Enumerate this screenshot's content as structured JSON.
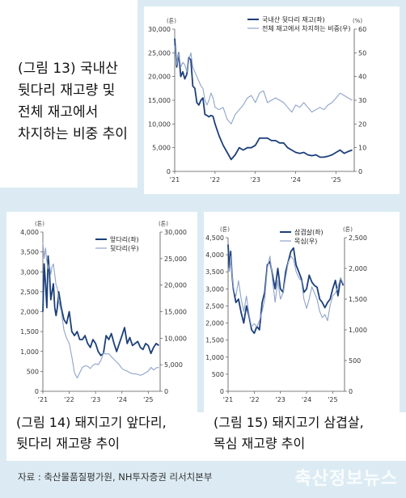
{
  "caption1": [
    "(그림 13) 국내산",
    "뒷다리 재고량 및",
    "전체 재고에서",
    "차지하는 비중 추이"
  ],
  "caption2": [
    "(그림 14) 돼지고기 앞다리,",
    "뒷다리 재고량 추이"
  ],
  "caption3": [
    "(그림 15) 돼지고기 삼겹살,",
    "목심 재고량 추이"
  ],
  "source": "자료 : 축산물품질평가원, NH투자증권 리서치본부",
  "watermark": "축산정보뉴스",
  "colors": {
    "primary": "#1c3f7a",
    "secondary": "#8fa3c9"
  },
  "chart_data": [
    {
      "type": "line",
      "left_unit": "(톤)",
      "right_unit": "(%)",
      "left_ticks": [
        "30,000",
        "25,000",
        "20,000",
        "15,000",
        "10,000",
        "5,000",
        "0"
      ],
      "right_ticks": [
        "60",
        "50",
        "40",
        "30",
        "20",
        "10",
        "0"
      ],
      "x_ticks": [
        "'21",
        "'22",
        "'23",
        "'24",
        "'25"
      ],
      "ylim": [
        0,
        30000
      ],
      "y2lim": [
        0,
        60
      ],
      "xlim": [
        2021.0,
        2025.45
      ],
      "series": [
        {
          "name": "국내산 뒷다리 재고(좌)",
          "axis": "left",
          "x": [
            2021.0,
            2021.05,
            2021.1,
            2021.15,
            2021.2,
            2021.25,
            2021.3,
            2021.35,
            2021.4,
            2021.45,
            2021.5,
            2021.55,
            2021.6,
            2021.65,
            2021.7,
            2021.75,
            2021.8,
            2021.85,
            2021.9,
            2021.95,
            2022.0,
            2022.1,
            2022.2,
            2022.3,
            2022.4,
            2022.5,
            2022.6,
            2022.7,
            2022.8,
            2022.9,
            2023.0,
            2023.1,
            2023.2,
            2023.3,
            2023.4,
            2023.5,
            2023.6,
            2023.7,
            2023.8,
            2023.9,
            2024.0,
            2024.1,
            2024.2,
            2024.3,
            2024.4,
            2024.5,
            2024.6,
            2024.7,
            2024.8,
            2024.9,
            2025.0,
            2025.1,
            2025.2,
            2025.3,
            2025.4
          ],
          "y": [
            28000,
            22000,
            25000,
            20000,
            21000,
            19500,
            20500,
            24000,
            23500,
            18000,
            17500,
            14500,
            14000,
            15000,
            15500,
            12000,
            11800,
            11500,
            11800,
            11600,
            10000,
            7500,
            5500,
            4000,
            2500,
            3500,
            5000,
            4500,
            5000,
            5000,
            5500,
            7000,
            7000,
            7000,
            6500,
            6500,
            6000,
            6000,
            5000,
            4500,
            4000,
            3800,
            4000,
            3500,
            3300,
            3500,
            3000,
            3000,
            3200,
            3500,
            4000,
            4500,
            3800,
            4200,
            4500
          ]
        },
        {
          "name": "전체 재고에서 차지하는 비중(우)",
          "axis": "right",
          "x": [
            2021.0,
            2021.05,
            2021.1,
            2021.15,
            2021.2,
            2021.25,
            2021.3,
            2021.35,
            2021.4,
            2021.45,
            2021.5,
            2021.55,
            2021.6,
            2021.65,
            2021.7,
            2021.75,
            2021.8,
            2021.85,
            2021.9,
            2021.95,
            2022.0,
            2022.1,
            2022.2,
            2022.3,
            2022.4,
            2022.5,
            2022.6,
            2022.7,
            2022.8,
            2022.9,
            2023.0,
            2023.1,
            2023.2,
            2023.3,
            2023.4,
            2023.5,
            2023.6,
            2023.7,
            2023.8,
            2023.9,
            2024.0,
            2024.1,
            2024.2,
            2024.3,
            2024.4,
            2024.5,
            2024.6,
            2024.7,
            2024.8,
            2024.9,
            2025.0,
            2025.1,
            2025.2,
            2025.3,
            2025.4
          ],
          "y": [
            53,
            45,
            50,
            44,
            46,
            45,
            42,
            47,
            50,
            44,
            42,
            40,
            38,
            36,
            35,
            30,
            28,
            30,
            33,
            31,
            27,
            26,
            27,
            22,
            20,
            24,
            26,
            28,
            31,
            32,
            29,
            33,
            34,
            29,
            30,
            31,
            30,
            29,
            27,
            25,
            28,
            27,
            29,
            27,
            25,
            26,
            27,
            26,
            28,
            29,
            31,
            33,
            32,
            31,
            30
          ]
        }
      ]
    },
    {
      "type": "line",
      "left_unit": "(톤)",
      "right_unit": "(톤)",
      "left_ticks": [
        "4,000",
        "3,500",
        "3,000",
        "2,500",
        "2,000",
        "1,500",
        "1,000",
        "500",
        "0"
      ],
      "right_ticks": [
        "30,000",
        "25,000",
        "20,000",
        "15,000",
        "10,000",
        "5,000",
        "0"
      ],
      "x_ticks": [
        "'21",
        "'22",
        "'23",
        "'24",
        "'25"
      ],
      "ylim": [
        0,
        4000
      ],
      "y2lim": [
        0,
        30000
      ],
      "xlim": [
        2021.0,
        2025.45
      ],
      "series": [
        {
          "name": "앞다리(좌)",
          "axis": "left",
          "x": [
            2021.0,
            2021.05,
            2021.1,
            2021.15,
            2021.2,
            2021.25,
            2021.3,
            2021.35,
            2021.4,
            2021.45,
            2021.5,
            2021.55,
            2021.6,
            2021.7,
            2021.8,
            2021.9,
            2022.0,
            2022.1,
            2022.2,
            2022.3,
            2022.4,
            2022.5,
            2022.6,
            2022.7,
            2022.8,
            2022.9,
            2023.0,
            2023.1,
            2023.2,
            2023.3,
            2023.4,
            2023.5,
            2023.6,
            2023.7,
            2023.8,
            2023.9,
            2024.0,
            2024.1,
            2024.2,
            2024.3,
            2024.4,
            2024.5,
            2024.6,
            2024.7,
            2024.8,
            2024.9,
            2025.0,
            2025.1,
            2025.2,
            2025.3,
            2025.4
          ],
          "y": [
            2000,
            3200,
            2700,
            2100,
            3400,
            3000,
            2300,
            2500,
            2700,
            2100,
            1900,
            2100,
            2500,
            2100,
            1800,
            1700,
            2000,
            1500,
            1400,
            1500,
            1300,
            1300,
            1400,
            1200,
            1100,
            1300,
            1200,
            1000,
            900,
            950,
            1400,
            1300,
            1450,
            1200,
            1000,
            1200,
            1400,
            1600,
            1200,
            1350,
            1150,
            1200,
            1250,
            1100,
            1050,
            1200,
            1150,
            950,
            1100,
            1200,
            1150
          ]
        },
        {
          "name": "뒷다리(우)",
          "axis": "right",
          "x": [
            2021.0,
            2021.05,
            2021.1,
            2021.15,
            2021.2,
            2021.25,
            2021.3,
            2021.35,
            2021.4,
            2021.45,
            2021.5,
            2021.55,
            2021.6,
            2021.7,
            2021.8,
            2021.9,
            2022.0,
            2022.1,
            2022.2,
            2022.3,
            2022.4,
            2022.5,
            2022.6,
            2022.7,
            2022.8,
            2022.9,
            2023.0,
            2023.1,
            2023.2,
            2023.3,
            2023.4,
            2023.5,
            2023.6,
            2023.7,
            2023.8,
            2023.9,
            2024.0,
            2024.1,
            2024.2,
            2024.3,
            2024.4,
            2024.5,
            2024.6,
            2024.7,
            2024.8,
            2024.9,
            2025.0,
            2025.1,
            2025.2,
            2025.3,
            2025.4
          ],
          "y": [
            28000,
            25000,
            27000,
            24500,
            23000,
            24000,
            22000,
            23500,
            24000,
            22000,
            20000,
            19500,
            17000,
            15000,
            11500,
            10000,
            9000,
            6500,
            3500,
            2500,
            3500,
            4500,
            4800,
            4700,
            4300,
            4900,
            5200,
            5000,
            5800,
            7200,
            7000,
            7100,
            6500,
            6000,
            5500,
            5000,
            4300,
            4000,
            3800,
            3500,
            3300,
            3300,
            3200,
            3000,
            3200,
            3500,
            3800,
            4500,
            4000,
            4400,
            4500
          ]
        }
      ]
    },
    {
      "type": "line",
      "left_unit": "(톤)",
      "right_unit": "(톤)",
      "left_ticks": [
        "4,500",
        "4,000",
        "3,500",
        "3,000",
        "2,500",
        "2,000",
        "1,500",
        "1,000",
        "500",
        "0"
      ],
      "right_ticks": [
        "2,500",
        "2,000",
        "1,500",
        "1,000",
        "500",
        "0"
      ],
      "x_ticks": [
        "'21",
        "'22",
        "'23",
        "'24",
        "'25"
      ],
      "ylim": [
        0,
        4500
      ],
      "y2lim": [
        0,
        2500
      ],
      "xlim": [
        2021.0,
        2025.45
      ],
      "series": [
        {
          "name": "삼겹살(좌)",
          "axis": "left",
          "x": [
            2021.0,
            2021.05,
            2021.1,
            2021.15,
            2021.2,
            2021.25,
            2021.3,
            2021.4,
            2021.5,
            2021.6,
            2021.7,
            2021.8,
            2021.9,
            2022.0,
            2022.1,
            2022.2,
            2022.3,
            2022.4,
            2022.5,
            2022.6,
            2022.7,
            2022.8,
            2022.9,
            2023.0,
            2023.1,
            2023.2,
            2023.3,
            2023.4,
            2023.5,
            2023.6,
            2023.7,
            2023.8,
            2023.9,
            2024.0,
            2024.1,
            2024.2,
            2024.3,
            2024.4,
            2024.5,
            2024.6,
            2024.7,
            2024.8,
            2024.9,
            2025.0,
            2025.1,
            2025.2,
            2025.3,
            2025.4
          ],
          "y": [
            4300,
            3600,
            4100,
            3400,
            3000,
            2800,
            2600,
            2700,
            2300,
            2000,
            2500,
            2200,
            1800,
            1700,
            1900,
            1800,
            2600,
            2900,
            3700,
            3800,
            3400,
            3000,
            3600,
            3000,
            2900,
            3500,
            3800,
            4100,
            4200,
            3700,
            3500,
            3300,
            2900,
            3000,
            3400,
            3200,
            3100,
            3050,
            2700,
            2600,
            2450,
            2600,
            2700,
            3000,
            3250,
            2800,
            3300,
            3100
          ]
        },
        {
          "name": "목심(우)",
          "axis": "right",
          "x": [
            2021.0,
            2021.05,
            2021.1,
            2021.15,
            2021.2,
            2021.25,
            2021.3,
            2021.4,
            2021.5,
            2021.6,
            2021.7,
            2021.8,
            2021.9,
            2022.0,
            2022.1,
            2022.2,
            2022.3,
            2022.4,
            2022.5,
            2022.6,
            2022.7,
            2022.8,
            2022.9,
            2023.0,
            2023.1,
            2023.2,
            2023.3,
            2023.4,
            2023.5,
            2023.6,
            2023.7,
            2023.8,
            2023.9,
            2024.0,
            2024.1,
            2024.2,
            2024.3,
            2024.4,
            2024.5,
            2024.6,
            2024.7,
            2024.8,
            2024.9,
            2025.0,
            2025.1,
            2025.2,
            2025.3,
            2025.4
          ],
          "y": [
            2000,
            1950,
            2200,
            1900,
            1700,
            1600,
            1550,
            1800,
            1500,
            1300,
            1550,
            1250,
            1050,
            1100,
            1050,
            1150,
            1300,
            1500,
            2000,
            2200,
            1800,
            1450,
            1800,
            1500,
            1600,
            1850,
            2100,
            2200,
            2150,
            1950,
            1850,
            1800,
            1500,
            1350,
            1500,
            1700,
            1600,
            1500,
            1300,
            1200,
            1250,
            1150,
            1400,
            1550,
            1600,
            1700,
            1850,
            1750
          ]
        }
      ]
    }
  ]
}
